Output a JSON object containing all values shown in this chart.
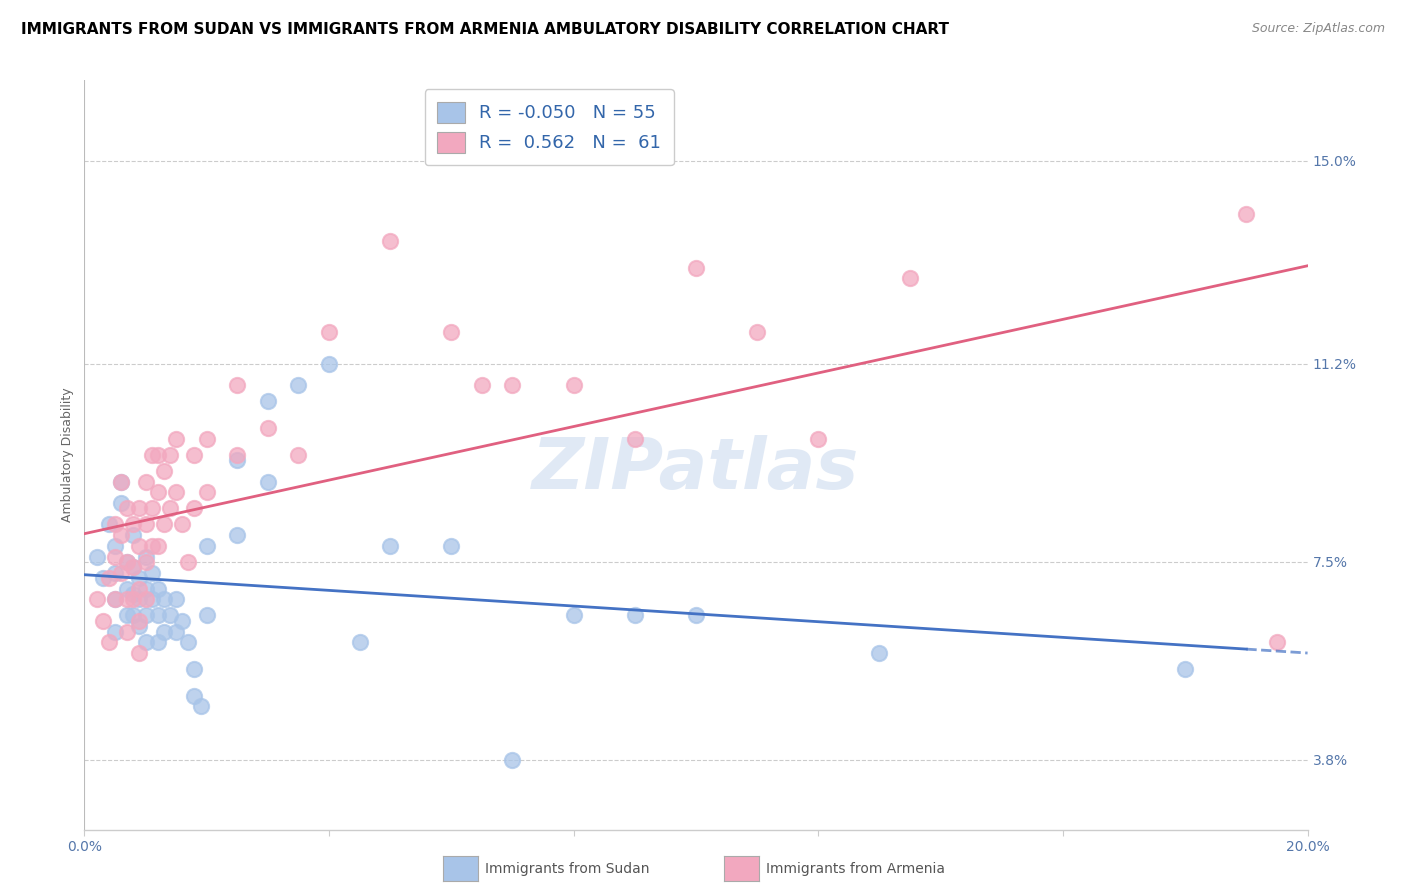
{
  "title": "IMMIGRANTS FROM SUDAN VS IMMIGRANTS FROM ARMENIA AMBULATORY DISABILITY CORRELATION CHART",
  "source": "Source: ZipAtlas.com",
  "ylabel": "Ambulatory Disability",
  "xlim": [
    0.0,
    0.2
  ],
  "ylim": [
    0.025,
    0.165
  ],
  "yticks": [
    0.038,
    0.075,
    0.112,
    0.15
  ],
  "ytick_labels": [
    "3.8%",
    "7.5%",
    "11.2%",
    "15.0%"
  ],
  "xticks": [
    0.0,
    0.04,
    0.08,
    0.12,
    0.16,
    0.2
  ],
  "xtick_labels": [
    "0.0%",
    "",
    "",
    "",
    "",
    "20.0%"
  ],
  "sudan_color": "#a8c4e8",
  "armenia_color": "#f2a8bf",
  "sudan_line_color": "#4472C4",
  "armenia_line_color": "#e06080",
  "sudan_R": "-0.050",
  "sudan_N": "55",
  "armenia_R": "0.562",
  "armenia_N": "61",
  "sudan_label": "Immigrants from Sudan",
  "armenia_label": "Immigrants from Armenia",
  "watermark": "ZIPatlas",
  "sudan_scatter": [
    [
      0.002,
      0.076
    ],
    [
      0.003,
      0.072
    ],
    [
      0.004,
      0.082
    ],
    [
      0.005,
      0.078
    ],
    [
      0.005,
      0.073
    ],
    [
      0.005,
      0.068
    ],
    [
      0.005,
      0.062
    ],
    [
      0.006,
      0.09
    ],
    [
      0.006,
      0.086
    ],
    [
      0.007,
      0.075
    ],
    [
      0.007,
      0.07
    ],
    [
      0.007,
      0.065
    ],
    [
      0.008,
      0.08
    ],
    [
      0.008,
      0.074
    ],
    [
      0.008,
      0.069
    ],
    [
      0.008,
      0.065
    ],
    [
      0.009,
      0.072
    ],
    [
      0.009,
      0.068
    ],
    [
      0.009,
      0.063
    ],
    [
      0.01,
      0.076
    ],
    [
      0.01,
      0.07
    ],
    [
      0.01,
      0.065
    ],
    [
      0.01,
      0.06
    ],
    [
      0.011,
      0.073
    ],
    [
      0.011,
      0.068
    ],
    [
      0.012,
      0.07
    ],
    [
      0.012,
      0.065
    ],
    [
      0.012,
      0.06
    ],
    [
      0.013,
      0.068
    ],
    [
      0.013,
      0.062
    ],
    [
      0.014,
      0.065
    ],
    [
      0.015,
      0.068
    ],
    [
      0.015,
      0.062
    ],
    [
      0.016,
      0.064
    ],
    [
      0.017,
      0.06
    ],
    [
      0.018,
      0.055
    ],
    [
      0.018,
      0.05
    ],
    [
      0.019,
      0.048
    ],
    [
      0.02,
      0.078
    ],
    [
      0.02,
      0.065
    ],
    [
      0.025,
      0.094
    ],
    [
      0.025,
      0.08
    ],
    [
      0.03,
      0.105
    ],
    [
      0.03,
      0.09
    ],
    [
      0.035,
      0.108
    ],
    [
      0.04,
      0.112
    ],
    [
      0.045,
      0.06
    ],
    [
      0.05,
      0.078
    ],
    [
      0.06,
      0.078
    ],
    [
      0.07,
      0.038
    ],
    [
      0.08,
      0.065
    ],
    [
      0.09,
      0.065
    ],
    [
      0.1,
      0.065
    ],
    [
      0.13,
      0.058
    ],
    [
      0.18,
      0.055
    ]
  ],
  "armenia_scatter": [
    [
      0.002,
      0.068
    ],
    [
      0.003,
      0.064
    ],
    [
      0.004,
      0.072
    ],
    [
      0.004,
      0.06
    ],
    [
      0.005,
      0.082
    ],
    [
      0.005,
      0.076
    ],
    [
      0.005,
      0.068
    ],
    [
      0.006,
      0.09
    ],
    [
      0.006,
      0.08
    ],
    [
      0.006,
      0.073
    ],
    [
      0.007,
      0.085
    ],
    [
      0.007,
      0.075
    ],
    [
      0.007,
      0.068
    ],
    [
      0.007,
      0.062
    ],
    [
      0.008,
      0.082
    ],
    [
      0.008,
      0.074
    ],
    [
      0.008,
      0.068
    ],
    [
      0.009,
      0.085
    ],
    [
      0.009,
      0.078
    ],
    [
      0.009,
      0.07
    ],
    [
      0.009,
      0.064
    ],
    [
      0.009,
      0.058
    ],
    [
      0.01,
      0.09
    ],
    [
      0.01,
      0.082
    ],
    [
      0.01,
      0.075
    ],
    [
      0.01,
      0.068
    ],
    [
      0.011,
      0.095
    ],
    [
      0.011,
      0.085
    ],
    [
      0.011,
      0.078
    ],
    [
      0.012,
      0.095
    ],
    [
      0.012,
      0.088
    ],
    [
      0.012,
      0.078
    ],
    [
      0.013,
      0.092
    ],
    [
      0.013,
      0.082
    ],
    [
      0.014,
      0.095
    ],
    [
      0.014,
      0.085
    ],
    [
      0.015,
      0.098
    ],
    [
      0.015,
      0.088
    ],
    [
      0.016,
      0.082
    ],
    [
      0.017,
      0.075
    ],
    [
      0.018,
      0.095
    ],
    [
      0.018,
      0.085
    ],
    [
      0.02,
      0.098
    ],
    [
      0.02,
      0.088
    ],
    [
      0.025,
      0.108
    ],
    [
      0.025,
      0.095
    ],
    [
      0.03,
      0.1
    ],
    [
      0.035,
      0.095
    ],
    [
      0.04,
      0.118
    ],
    [
      0.05,
      0.135
    ],
    [
      0.06,
      0.118
    ],
    [
      0.065,
      0.108
    ],
    [
      0.07,
      0.108
    ],
    [
      0.08,
      0.108
    ],
    [
      0.09,
      0.098
    ],
    [
      0.1,
      0.13
    ],
    [
      0.11,
      0.118
    ],
    [
      0.12,
      0.098
    ],
    [
      0.135,
      0.128
    ],
    [
      0.19,
      0.14
    ],
    [
      0.195,
      0.06
    ]
  ],
  "title_fontsize": 11,
  "axis_label_fontsize": 9,
  "tick_fontsize": 10,
  "legend_fontsize": 13
}
